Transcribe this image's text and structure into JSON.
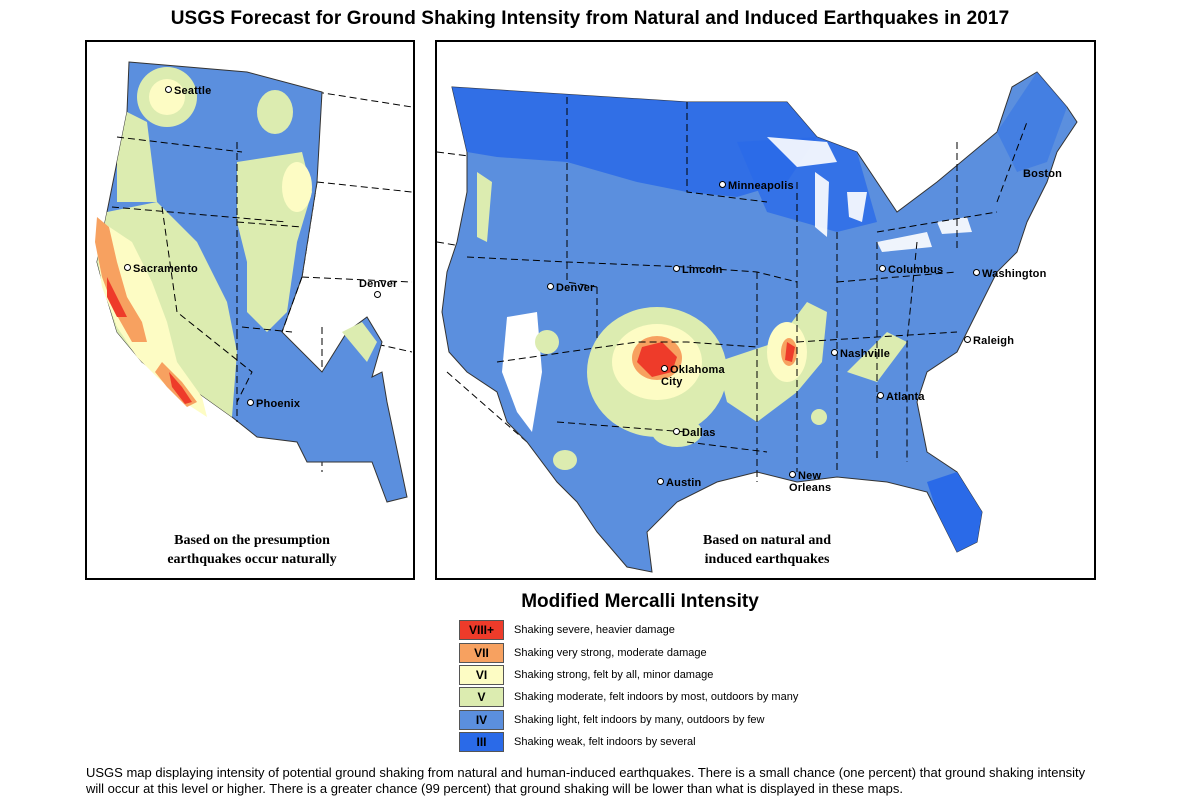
{
  "title": "USGS Forecast for Ground Shaking Intensity from Natural and Induced Earthquakes in 2017",
  "left_map": {
    "caption_line1": "Based on the presumption",
    "caption_line2": "earthquakes occur naturally",
    "cities": [
      "Seattle",
      "Sacramento",
      "Denver",
      "Phoenix"
    ]
  },
  "right_map": {
    "caption_line1": "Based on natural and",
    "caption_line2": "induced earthquakes",
    "cities": [
      "Minneapolis",
      "Boston",
      "Lincoln",
      "Columbus",
      "Washington",
      "Denver",
      "Raleigh",
      "Nashville",
      "Oklahoma City",
      "Atlanta",
      "Dallas",
      "New Orleans",
      "Austin"
    ]
  },
  "legend": {
    "title": "Modified Mercalli Intensity",
    "items": [
      {
        "level": "VIII+",
        "description": "Shaking severe, heavier damage",
        "color": "#ee3b2a"
      },
      {
        "level": "VII",
        "description": "Shaking very strong, moderate damage",
        "color": "#f7a160"
      },
      {
        "level": "VI",
        "description": "Shaking strong, felt by all, minor damage",
        "color": "#fdfcc4"
      },
      {
        "level": "V",
        "description": "Shaking moderate, felt indoors by most, outdoors by many",
        "color": "#dcecb0"
      },
      {
        "level": "IV",
        "description": "Shaking light, felt indoors by many, outdoors by few",
        "color": "#5b8fde"
      },
      {
        "level": "III",
        "description": "Shaking weak, felt indoors by several",
        "color": "#2a6ae8"
      }
    ]
  },
  "footer": "USGS map displaying intensity of potential ground shaking from natural and human-induced earthquakes. There is a small chance (one percent) that ground shaking intensity will occur at this level or higher.  There is a greater chance (99 percent) that ground shaking will be lower than what is displayed in these maps."
}
